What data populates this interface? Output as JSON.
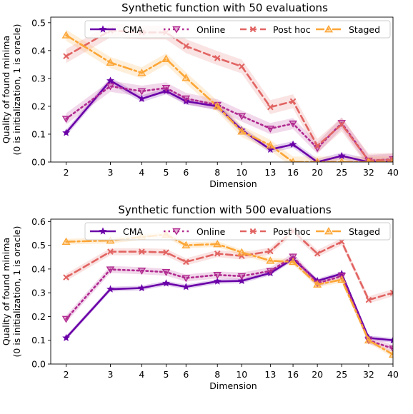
{
  "chart_data": [
    {
      "type": "line",
      "title": "Synthetic function with 50 evaluations",
      "xlabel": "Dimension",
      "ylabel_line1": "Quality of found minima",
      "ylabel_line2": "(0 is initialization, 1 is oracle)",
      "x_scale": "log",
      "x": [
        2,
        3,
        4,
        5,
        6,
        8,
        10,
        13,
        16,
        20,
        25,
        32,
        40
      ],
      "xticks": [
        "2",
        "3",
        "4",
        "5",
        "6",
        "8",
        "10",
        "13",
        "16",
        "20",
        "25",
        "32",
        "40"
      ],
      "ylim": [
        0,
        0.52
      ],
      "yticks": [
        0.0,
        0.1,
        0.2,
        0.3,
        0.4,
        0.5
      ],
      "ytick_labels": [
        "0.0",
        "0.1",
        "0.2",
        "0.3",
        "0.4",
        "0.5"
      ],
      "legend_position": "top-center",
      "series": [
        {
          "name": "CMA",
          "values": [
            0.105,
            0.292,
            0.227,
            0.255,
            0.218,
            0.2,
            0.115,
            0.045,
            0.063,
            0.0,
            0.022,
            0.0,
            0.0
          ],
          "band": 0.012
        },
        {
          "name": "Online",
          "values": [
            0.155,
            0.272,
            0.254,
            0.266,
            0.228,
            0.205,
            0.165,
            0.12,
            0.138,
            0.05,
            0.14,
            0.005,
            0.01
          ],
          "band": 0.02
        },
        {
          "name": "Post hoc",
          "values": [
            0.38,
            0.472,
            0.465,
            0.465,
            0.416,
            0.373,
            0.343,
            0.197,
            0.218,
            0.058,
            0.135,
            0.005,
            0.008
          ],
          "band": 0.025
        },
        {
          "name": "Staged",
          "values": [
            0.455,
            0.357,
            0.32,
            0.37,
            0.302,
            0.2,
            0.11,
            0.06,
            0.0,
            0.0,
            0.0,
            0.0,
            0.0
          ],
          "band": 0.02
        }
      ]
    },
    {
      "type": "line",
      "title": "Synthetic function with 500 evaluations",
      "xlabel": "Dimension",
      "ylabel_line1": "Quality of found minima",
      "ylabel_line2": "(0 is initialization, 1 is oracle)",
      "x_scale": "log",
      "x": [
        2,
        3,
        4,
        5,
        6,
        8,
        10,
        13,
        16,
        20,
        25,
        32,
        40
      ],
      "xticks": [
        "2",
        "3",
        "4",
        "5",
        "6",
        "8",
        "10",
        "13",
        "16",
        "20",
        "25",
        "32",
        "40"
      ],
      "ylim": [
        0,
        0.61
      ],
      "yticks": [
        0.0,
        0.1,
        0.2,
        0.3,
        0.4,
        0.5,
        0.6
      ],
      "ytick_labels": [
        "0.0",
        "0.1",
        "0.2",
        "0.3",
        "0.4",
        "0.5",
        "0.6"
      ],
      "legend_position": "top-center",
      "series": [
        {
          "name": "CMA",
          "values": [
            0.11,
            0.315,
            0.32,
            0.34,
            0.325,
            0.348,
            0.35,
            0.383,
            0.443,
            0.35,
            0.38,
            0.11,
            0.1
          ],
          "band": 0.01
        },
        {
          "name": "Online",
          "values": [
            0.19,
            0.398,
            0.393,
            0.387,
            0.362,
            0.375,
            0.37,
            0.392,
            0.452,
            0.34,
            0.37,
            0.1,
            0.065
          ],
          "band": 0.015
        },
        {
          "name": "Post hoc",
          "values": [
            0.365,
            0.473,
            0.473,
            0.47,
            0.43,
            0.465,
            0.455,
            0.475,
            0.56,
            0.465,
            0.515,
            0.27,
            0.3
          ],
          "band": 0.015
        },
        {
          "name": "Staged",
          "values": [
            0.515,
            0.52,
            0.535,
            0.545,
            0.5,
            0.505,
            0.47,
            0.435,
            0.43,
            0.335,
            0.355,
            0.1,
            0.04
          ],
          "band": 0.012
        }
      ]
    }
  ],
  "styles": [
    {
      "color": "#6a00a8",
      "dash": "",
      "marker": "star",
      "width": 2.6
    },
    {
      "color": "#b12a90",
      "dash": "2.5,4",
      "marker": "tri-down",
      "width": 2.6
    },
    {
      "color": "#e16462",
      "dash": "9,5",
      "marker": "x",
      "width": 2.6
    },
    {
      "color": "#fca636",
      "dash": "12,4,3,4",
      "marker": "tri-up",
      "width": 2.6
    }
  ]
}
